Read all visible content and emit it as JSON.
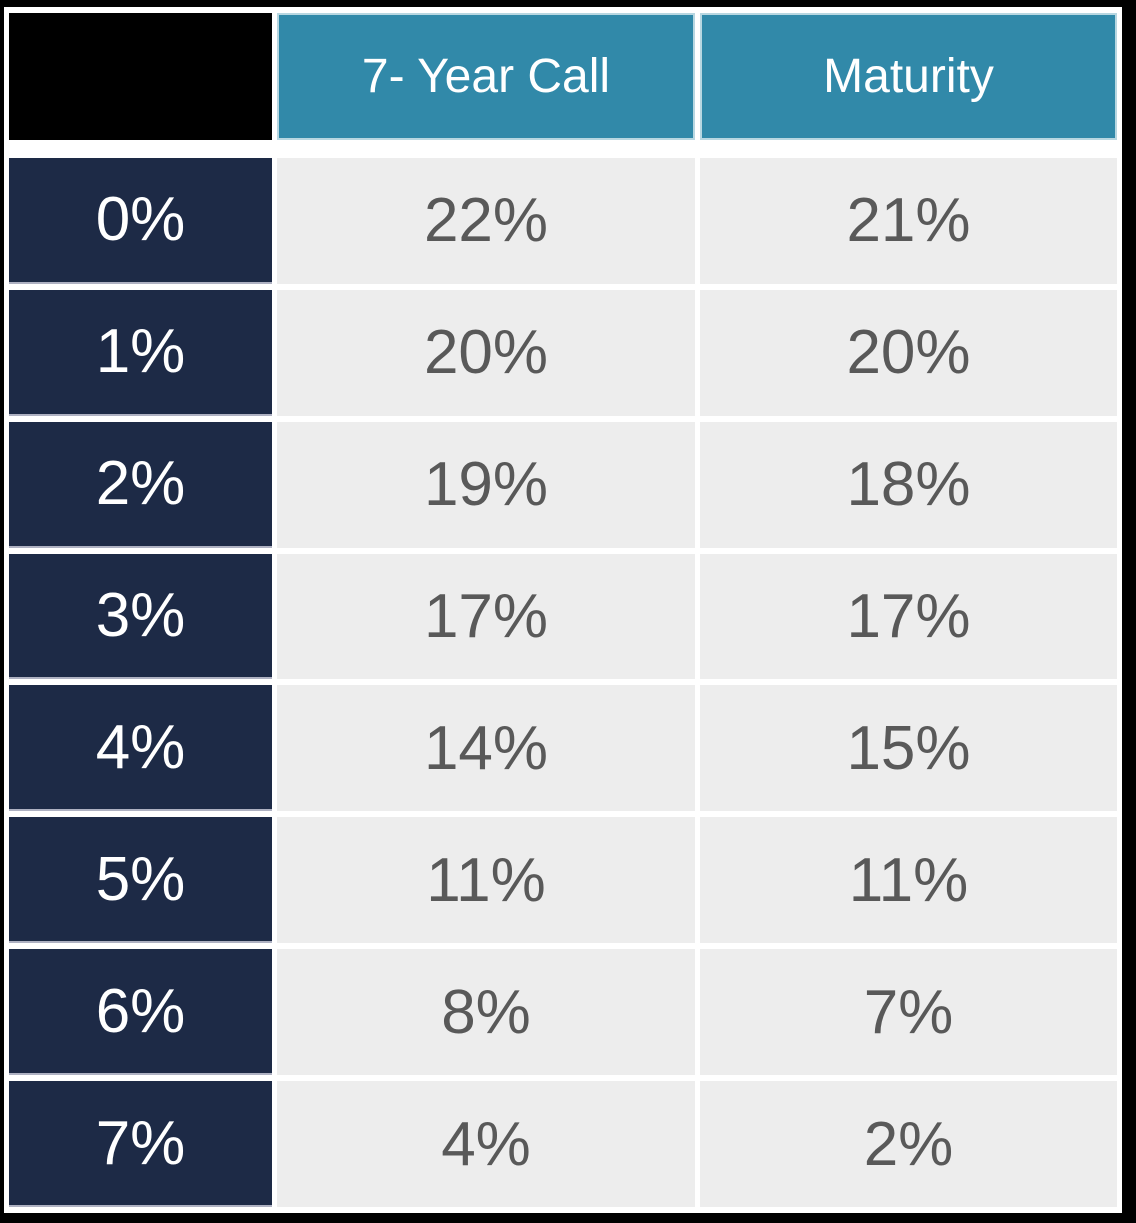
{
  "colors": {
    "frame_black": "#000000",
    "header_teal": "#3189a9",
    "header_border_light_blue": "#b8d7e1",
    "row_label_navy": "#1d2a46",
    "row_label_border": "#aeb1c2",
    "cell_gray": "#ededed",
    "cell_text_gray": "#595959",
    "header_text_white": "#ffffff"
  },
  "chart_data": {
    "type": "table",
    "columns": [
      "",
      "7- Year Call",
      "Maturity"
    ],
    "rows": [
      [
        "0%",
        "22%",
        "21%"
      ],
      [
        "1%",
        "20%",
        "20%"
      ],
      [
        "2%",
        "19%",
        "18%"
      ],
      [
        "3%",
        "17%",
        "17%"
      ],
      [
        "4%",
        "14%",
        "15%"
      ],
      [
        "5%",
        "11%",
        "11%"
      ],
      [
        "6%",
        "8%",
        "7%"
      ],
      [
        "7%",
        "4%",
        "2%"
      ]
    ]
  }
}
